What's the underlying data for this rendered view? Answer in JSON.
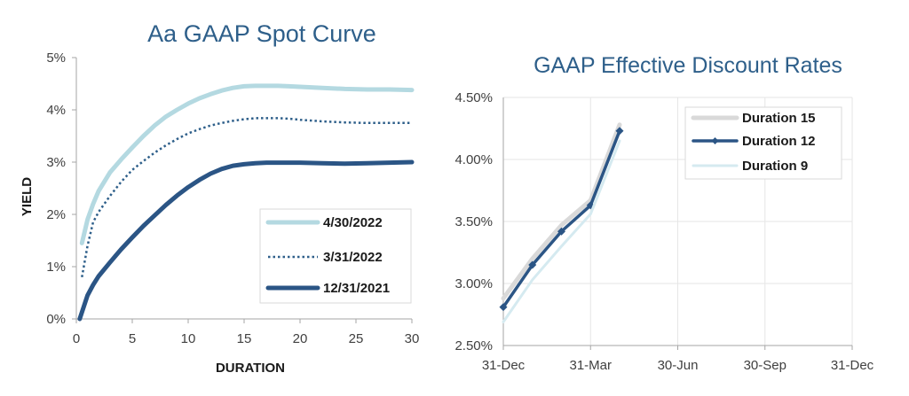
{
  "chart_data": [
    {
      "type": "line",
      "title": "Aa GAAP Spot Curve",
      "xlabel": "DURATION",
      "ylabel": "YIELD",
      "xlim": [
        0,
        30
      ],
      "ylim": [
        0,
        5
      ],
      "xticks": [
        "0",
        "5",
        "10",
        "15",
        "20",
        "25",
        "30"
      ],
      "yticks": [
        "0%",
        "1%",
        "2%",
        "3%",
        "4%",
        "5%"
      ],
      "grid": false,
      "legend": "bottom-right",
      "series": [
        {
          "name": "4/30/2022",
          "color": "#b4d9e1",
          "style": "solid-thick",
          "x": [
            0.5,
            1,
            1.5,
            2,
            3,
            4,
            5,
            6,
            7,
            8,
            9,
            10,
            11,
            12,
            13,
            14,
            15,
            16,
            17,
            18,
            19,
            20,
            22,
            24,
            26,
            28,
            30
          ],
          "y": [
            1.45,
            1.9,
            2.2,
            2.45,
            2.8,
            3.05,
            3.28,
            3.5,
            3.7,
            3.87,
            4.0,
            4.12,
            4.22,
            4.3,
            4.37,
            4.42,
            4.45,
            4.46,
            4.46,
            4.46,
            4.45,
            4.44,
            4.42,
            4.4,
            4.39,
            4.39,
            4.38
          ]
        },
        {
          "name": "3/31/2022",
          "color": "#2e5f8a",
          "style": "dotted",
          "x": [
            0.5,
            1,
            1.5,
            2,
            3,
            4,
            5,
            6,
            7,
            8,
            9,
            10,
            11,
            12,
            13,
            14,
            15,
            16,
            17,
            18,
            19,
            20,
            22,
            24,
            26,
            28,
            30
          ],
          "y": [
            0.8,
            1.4,
            1.85,
            2.05,
            2.35,
            2.62,
            2.85,
            3.02,
            3.18,
            3.32,
            3.44,
            3.55,
            3.63,
            3.7,
            3.75,
            3.79,
            3.82,
            3.84,
            3.84,
            3.84,
            3.83,
            3.81,
            3.78,
            3.76,
            3.75,
            3.75,
            3.75
          ]
        },
        {
          "name": "12/31/2021",
          "color": "#2b5585",
          "style": "solid-thick",
          "x": [
            0.3,
            1,
            1.5,
            2,
            3,
            4,
            5,
            6,
            7,
            8,
            9,
            10,
            11,
            12,
            13,
            14,
            15,
            16,
            17,
            18,
            19,
            20,
            22,
            24,
            26,
            28,
            30
          ],
          "y": [
            0.0,
            0.45,
            0.65,
            0.82,
            1.08,
            1.33,
            1.56,
            1.78,
            1.98,
            2.18,
            2.36,
            2.52,
            2.66,
            2.78,
            2.87,
            2.93,
            2.96,
            2.98,
            2.99,
            2.99,
            2.99,
            2.99,
            2.98,
            2.97,
            2.98,
            2.99,
            3.0
          ]
        }
      ]
    },
    {
      "type": "line",
      "title": "GAAP Effective Discount Rates",
      "xlabel": "",
      "ylabel": "",
      "xticks": [
        "31-Dec",
        "31-Mar",
        "30-Jun",
        "30-Sep",
        "31-Dec"
      ],
      "yticks": [
        "2.50%",
        "3.00%",
        "3.50%",
        "4.00%",
        "4.50%"
      ],
      "ylim": [
        2.5,
        4.5
      ],
      "grid": true,
      "legend": "top-right",
      "series": [
        {
          "name": "Duration 15",
          "color": "#d9d9d9",
          "x": [
            "31-Dec",
            "31-Jan",
            "28-Feb",
            "31-Mar",
            "30-Apr"
          ],
          "y": [
            2.88,
            3.2,
            3.47,
            3.67,
            4.28
          ]
        },
        {
          "name": "Duration 12",
          "color": "#2b5585",
          "markers": true,
          "x": [
            "31-Dec",
            "31-Jan",
            "28-Feb",
            "31-Mar",
            "30-Apr"
          ],
          "y": [
            2.81,
            3.15,
            3.42,
            3.63,
            4.23
          ]
        },
        {
          "name": "Duration 9",
          "color": "#d5eaf0",
          "x": [
            "31-Dec",
            "31-Jan",
            "28-Feb",
            "31-Mar",
            "30-Apr"
          ],
          "y": [
            2.69,
            3.03,
            3.3,
            3.56,
            4.15
          ]
        }
      ]
    }
  ]
}
